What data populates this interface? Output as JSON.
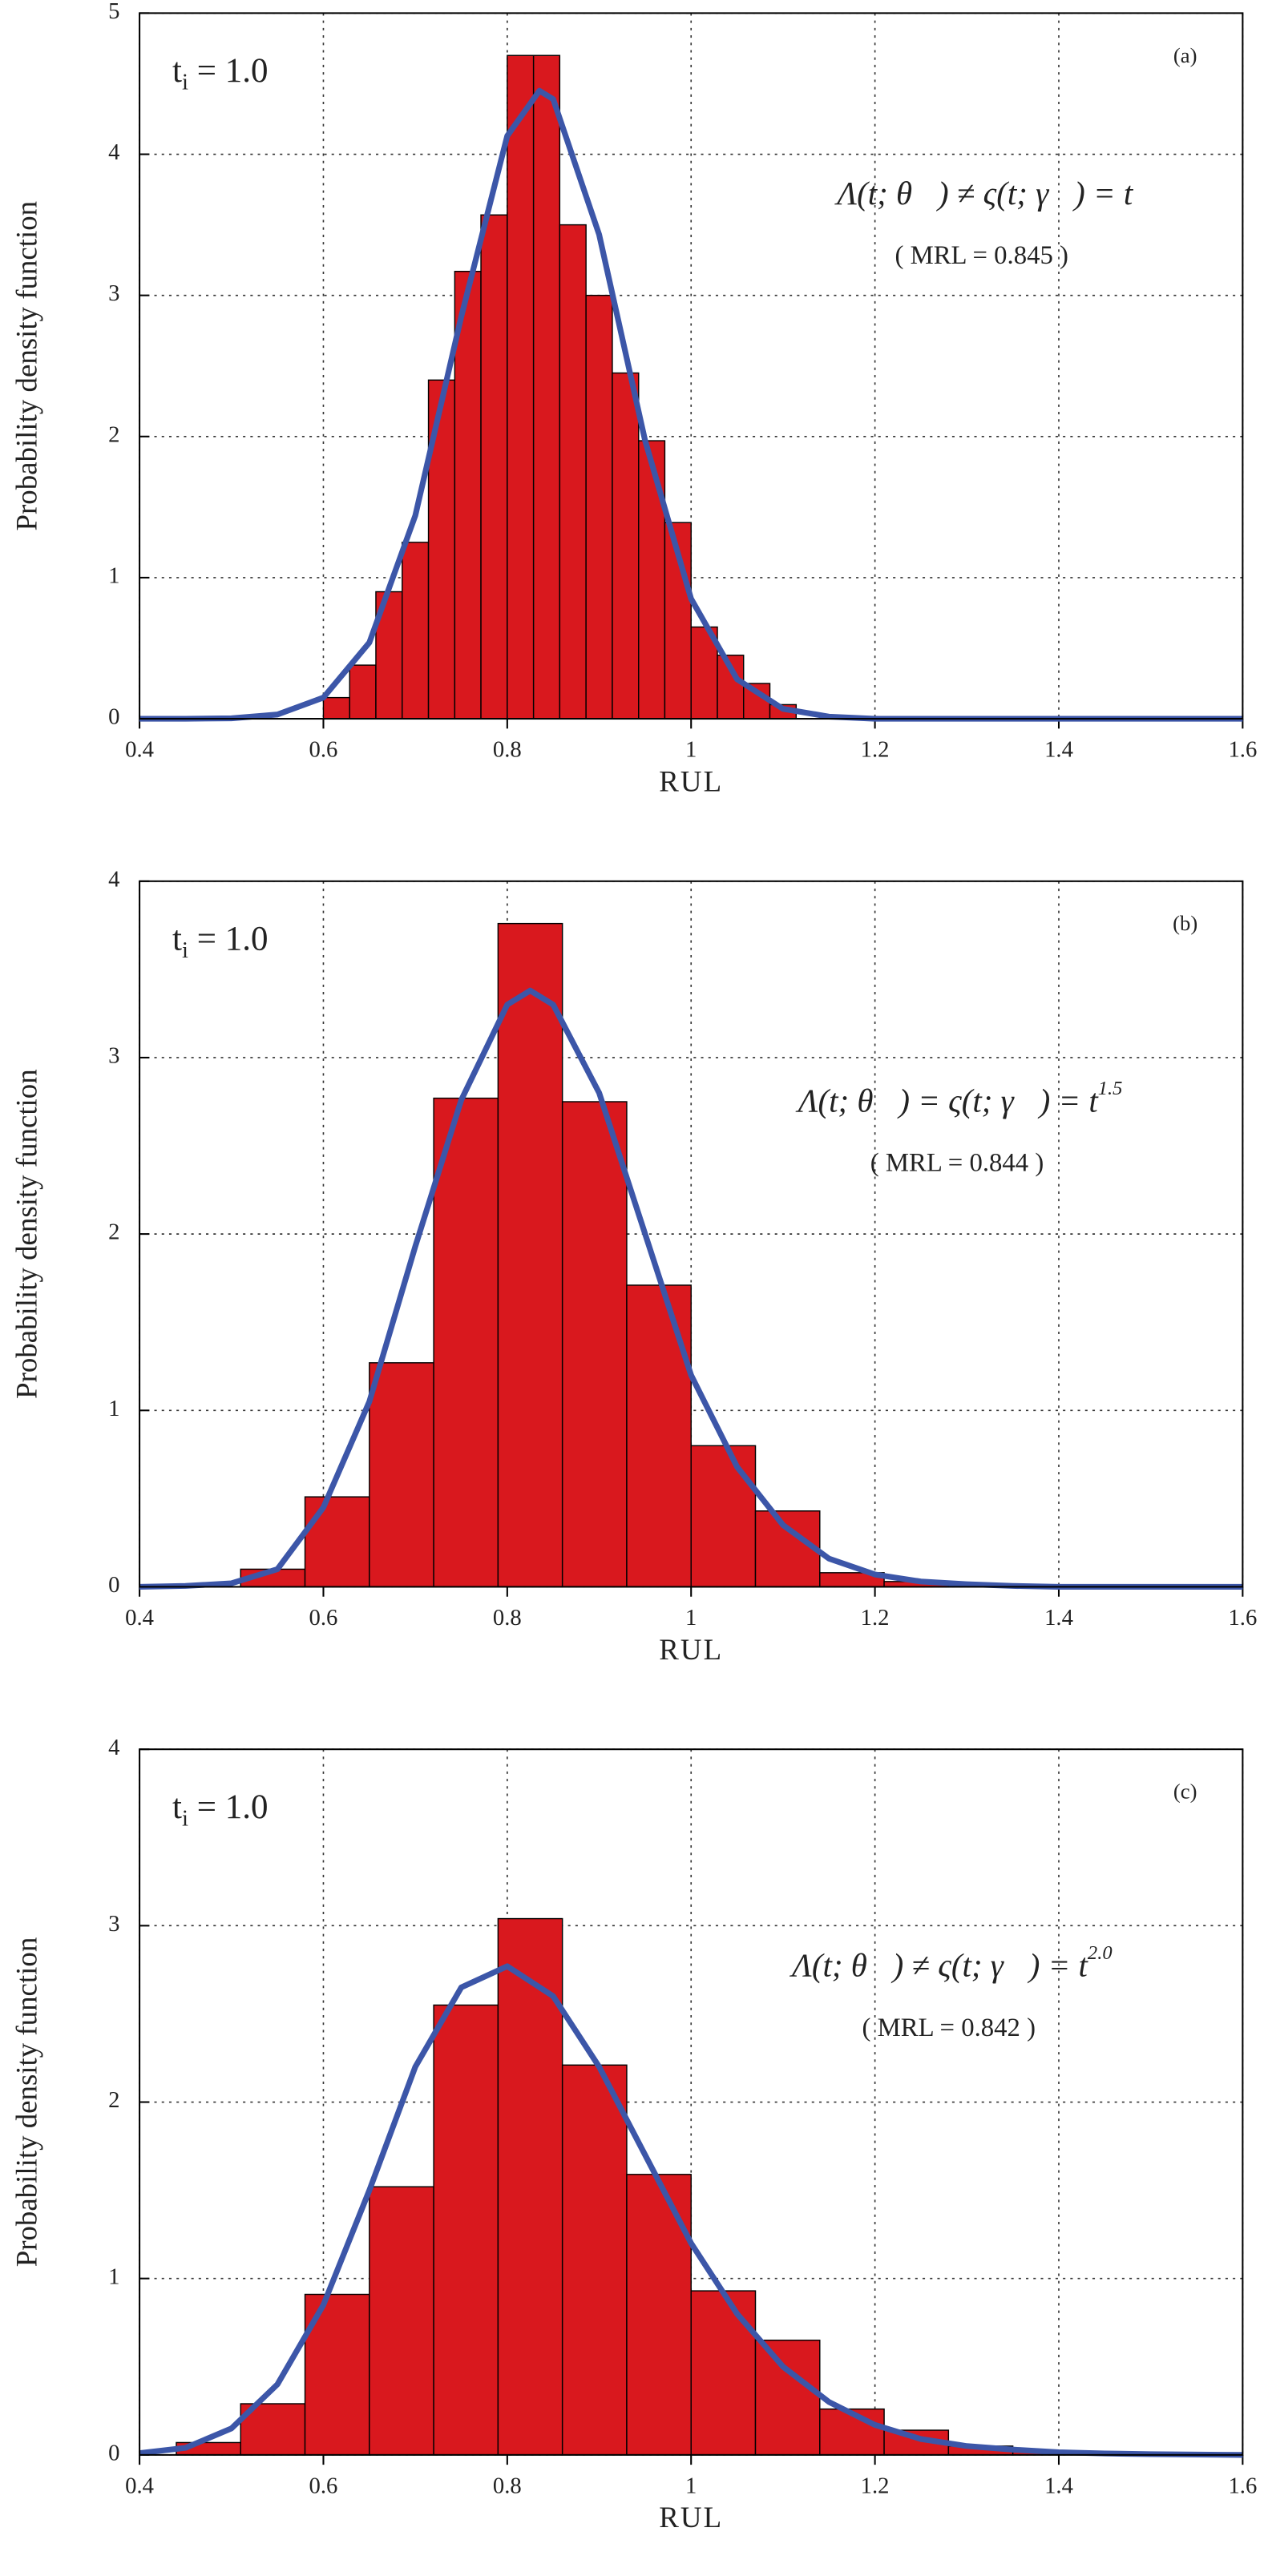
{
  "chart_data": [
    {
      "type": "histogram",
      "panel": "(a)",
      "xlabel": "RUL",
      "ylabel": "Probability density function",
      "annotation": {
        "symbol": "t",
        "subscript": "i",
        "text": " = 1.0"
      },
      "formula": "Λ(t; θ⃗) ≠ ς(t; γ⃗) = t",
      "mrl": "( MRL = 0.845 )",
      "bins": [
        0.6,
        0.6286,
        0.6571,
        0.6857,
        0.7143,
        0.7429,
        0.7714,
        0.8,
        0.8286,
        0.8571,
        0.8857,
        0.9143,
        0.9429,
        0.9714,
        1.0,
        1.0286,
        1.0571,
        1.0857,
        1.1143
      ],
      "counts": [
        0.15,
        0.38,
        0.9,
        1.25,
        2.4,
        3.17,
        3.57,
        4.7,
        4.7,
        3.5,
        3.0,
        2.45,
        1.97,
        1.39,
        0.65,
        0.45,
        0.25,
        0.1
      ],
      "color": "#d9181e",
      "curve": {
        "color": "#3c56a8",
        "x": [
          0.4,
          0.45,
          0.5,
          0.55,
          0.6,
          0.65,
          0.7,
          0.75,
          0.8,
          0.835,
          0.85,
          0.9,
          0.95,
          1.0,
          1.05,
          1.1,
          1.15,
          1.2,
          1.3,
          1.4,
          1.5,
          1.6
        ],
        "values": [
          0,
          0,
          0.003,
          0.03,
          0.15,
          0.54,
          1.44,
          2.85,
          4.13,
          4.45,
          4.39,
          3.43,
          1.97,
          0.85,
          0.28,
          0.07,
          0.015,
          0,
          0,
          0,
          0,
          0
        ]
      },
      "xlim": [
        0.4,
        1.6
      ],
      "xticks": [
        0.4,
        0.6,
        0.8,
        1,
        1.2,
        1.4,
        1.6
      ],
      "ylim": [
        0,
        5
      ],
      "yticks": [
        0,
        1,
        2,
        3,
        4,
        5
      ],
      "grid": true
    },
    {
      "type": "histogram",
      "panel": "(b)",
      "xlabel": "RUL",
      "ylabel": "Probability density function",
      "annotation": {
        "symbol": "t",
        "subscript": "i",
        "text": " = 1.0"
      },
      "formula": "Λ(t; θ⃗) = ς(t; γ⃗) = t",
      "exponent": "1.5",
      "mrl": "( MRL = 0.844 )",
      "bins": [
        0.51,
        0.58,
        0.65,
        0.72,
        0.79,
        0.86,
        0.93,
        1.0,
        1.07,
        1.14,
        1.21,
        1.28
      ],
      "counts": [
        0.1,
        0.51,
        1.27,
        2.77,
        3.76,
        2.75,
        1.71,
        0.8,
        0.43,
        0.08,
        0.03
      ],
      "color": "#d9181e",
      "curve": {
        "color": "#3c56a8",
        "x": [
          0.4,
          0.45,
          0.5,
          0.55,
          0.6,
          0.65,
          0.7,
          0.75,
          0.8,
          0.825,
          0.85,
          0.9,
          0.95,
          1.0,
          1.05,
          1.1,
          1.15,
          1.2,
          1.25,
          1.3,
          1.35,
          1.4,
          1.5,
          1.6
        ],
        "values": [
          0,
          0.005,
          0.02,
          0.1,
          0.45,
          1.05,
          1.93,
          2.76,
          3.3,
          3.38,
          3.3,
          2.8,
          2.0,
          1.2,
          0.68,
          0.35,
          0.16,
          0.07,
          0.03,
          0.015,
          0.005,
          0,
          0,
          0
        ]
      },
      "xlim": [
        0.4,
        1.6
      ],
      "xticks": [
        0.4,
        0.6,
        0.8,
        1,
        1.2,
        1.4,
        1.6
      ],
      "ylim": [
        0,
        4
      ],
      "yticks": [
        0,
        1,
        2,
        3,
        4
      ],
      "grid": true
    },
    {
      "type": "histogram",
      "panel": "(c)",
      "xlabel": "RUL",
      "ylabel": "Probability density function",
      "annotation": {
        "symbol": "t",
        "subscript": "i",
        "text": " = 1.0"
      },
      "formula": "Λ(t; θ⃗) ≠ ς(t; γ⃗) = t",
      "exponent": "2.0",
      "mrl": "( MRL = 0.842 )",
      "bins": [
        0.44,
        0.51,
        0.58,
        0.65,
        0.72,
        0.79,
        0.86,
        0.93,
        1.0,
        1.07,
        1.14,
        1.21,
        1.28,
        1.35,
        1.42
      ],
      "counts": [
        0.07,
        0.29,
        0.91,
        1.52,
        2.55,
        3.04,
        2.21,
        1.59,
        0.93,
        0.65,
        0.26,
        0.14,
        0.05,
        0.02
      ],
      "color": "#d9181e",
      "curve": {
        "color": "#3c56a8",
        "x": [
          0.4,
          0.45,
          0.5,
          0.55,
          0.6,
          0.65,
          0.7,
          0.75,
          0.8,
          0.85,
          0.9,
          0.95,
          1.0,
          1.05,
          1.1,
          1.15,
          1.2,
          1.25,
          1.3,
          1.35,
          1.4,
          1.45,
          1.5,
          1.6
        ],
        "values": [
          0.01,
          0.04,
          0.15,
          0.4,
          0.85,
          1.5,
          2.2,
          2.65,
          2.77,
          2.6,
          2.2,
          1.7,
          1.2,
          0.8,
          0.5,
          0.3,
          0.17,
          0.09,
          0.05,
          0.03,
          0.015,
          0.008,
          0.004,
          0
        ]
      },
      "xlim": [
        0.4,
        1.6
      ],
      "xticks": [
        0.4,
        0.6,
        0.8,
        1,
        1.2,
        1.4,
        1.6
      ],
      "ylim": [
        0,
        4
      ],
      "yticks": [
        0,
        1,
        2,
        3,
        4
      ],
      "grid": true
    }
  ]
}
